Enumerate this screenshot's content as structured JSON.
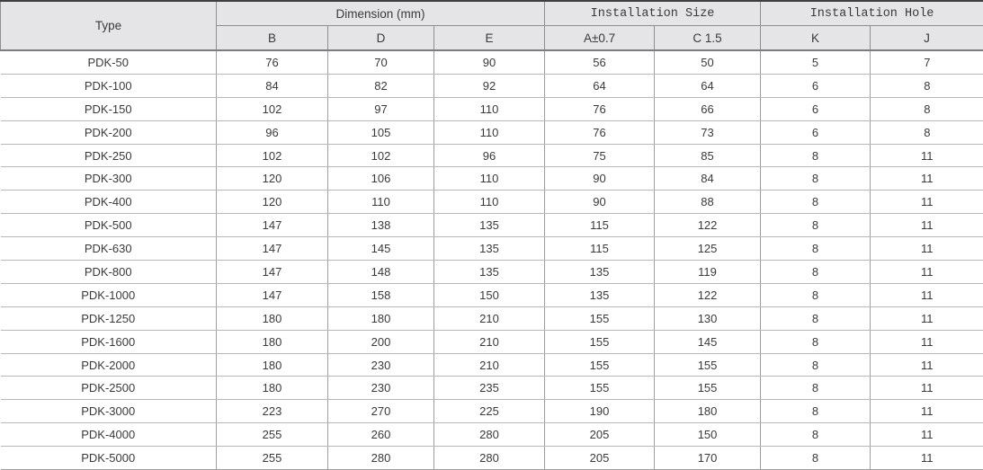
{
  "colors": {
    "header_bg": "#e5e5e7",
    "border_strong": "#3f3f3f",
    "border_medium": "#8f8f8f",
    "border_light": "#b8b8b8",
    "text": "#3a3a3a",
    "row_bg": "#ffffff"
  },
  "table": {
    "header": {
      "type": "Type",
      "dimension_group": "Dimension (mm)",
      "dimension_cols": [
        "B",
        "D",
        "E"
      ],
      "install_size_group": "Installation Size",
      "install_size_cols": [
        "A±0.7",
        "C 1.5"
      ],
      "install_hole_group": "Installation Hole",
      "install_hole_cols": [
        "K",
        "J"
      ]
    },
    "rows": [
      [
        "PDK-50",
        "76",
        "70",
        "90",
        "56",
        "50",
        "5",
        "7"
      ],
      [
        "PDK-100",
        "84",
        "82",
        "92",
        "64",
        "64",
        "6",
        "8"
      ],
      [
        "PDK-150",
        "102",
        "97",
        "110",
        "76",
        "66",
        "6",
        "8"
      ],
      [
        "PDK-200",
        "96",
        "105",
        "110",
        "76",
        "73",
        "6",
        "8"
      ],
      [
        "PDK-250",
        "102",
        "102",
        "96",
        "75",
        "85",
        "8",
        "11"
      ],
      [
        "PDK-300",
        "120",
        "106",
        "110",
        "90",
        "84",
        "8",
        "11"
      ],
      [
        "PDK-400",
        "120",
        "110",
        "110",
        "90",
        "88",
        "8",
        "11"
      ],
      [
        "PDK-500",
        "147",
        "138",
        "135",
        "115",
        "122",
        "8",
        "11"
      ],
      [
        "PDK-630",
        "147",
        "145",
        "135",
        "115",
        "125",
        "8",
        "11"
      ],
      [
        "PDK-800",
        "147",
        "148",
        "135",
        "135",
        "119",
        "8",
        "11"
      ],
      [
        "PDK-1000",
        "147",
        "158",
        "150",
        "135",
        "122",
        "8",
        "11"
      ],
      [
        "PDK-1250",
        "180",
        "180",
        "210",
        "155",
        "130",
        "8",
        "11"
      ],
      [
        "PDK-1600",
        "180",
        "200",
        "210",
        "155",
        "145",
        "8",
        "11"
      ],
      [
        "PDK-2000",
        "180",
        "230",
        "210",
        "155",
        "155",
        "8",
        "11"
      ],
      [
        "PDK-2500",
        "180",
        "230",
        "235",
        "155",
        "155",
        "8",
        "11"
      ],
      [
        "PDK-3000",
        "223",
        "270",
        "225",
        "190",
        "180",
        "8",
        "11"
      ],
      [
        "PDK-4000",
        "255",
        "260",
        "280",
        "205",
        "150",
        "8",
        "11"
      ],
      [
        "PDK-5000",
        "255",
        "280",
        "280",
        "205",
        "170",
        "8",
        "11"
      ]
    ]
  }
}
